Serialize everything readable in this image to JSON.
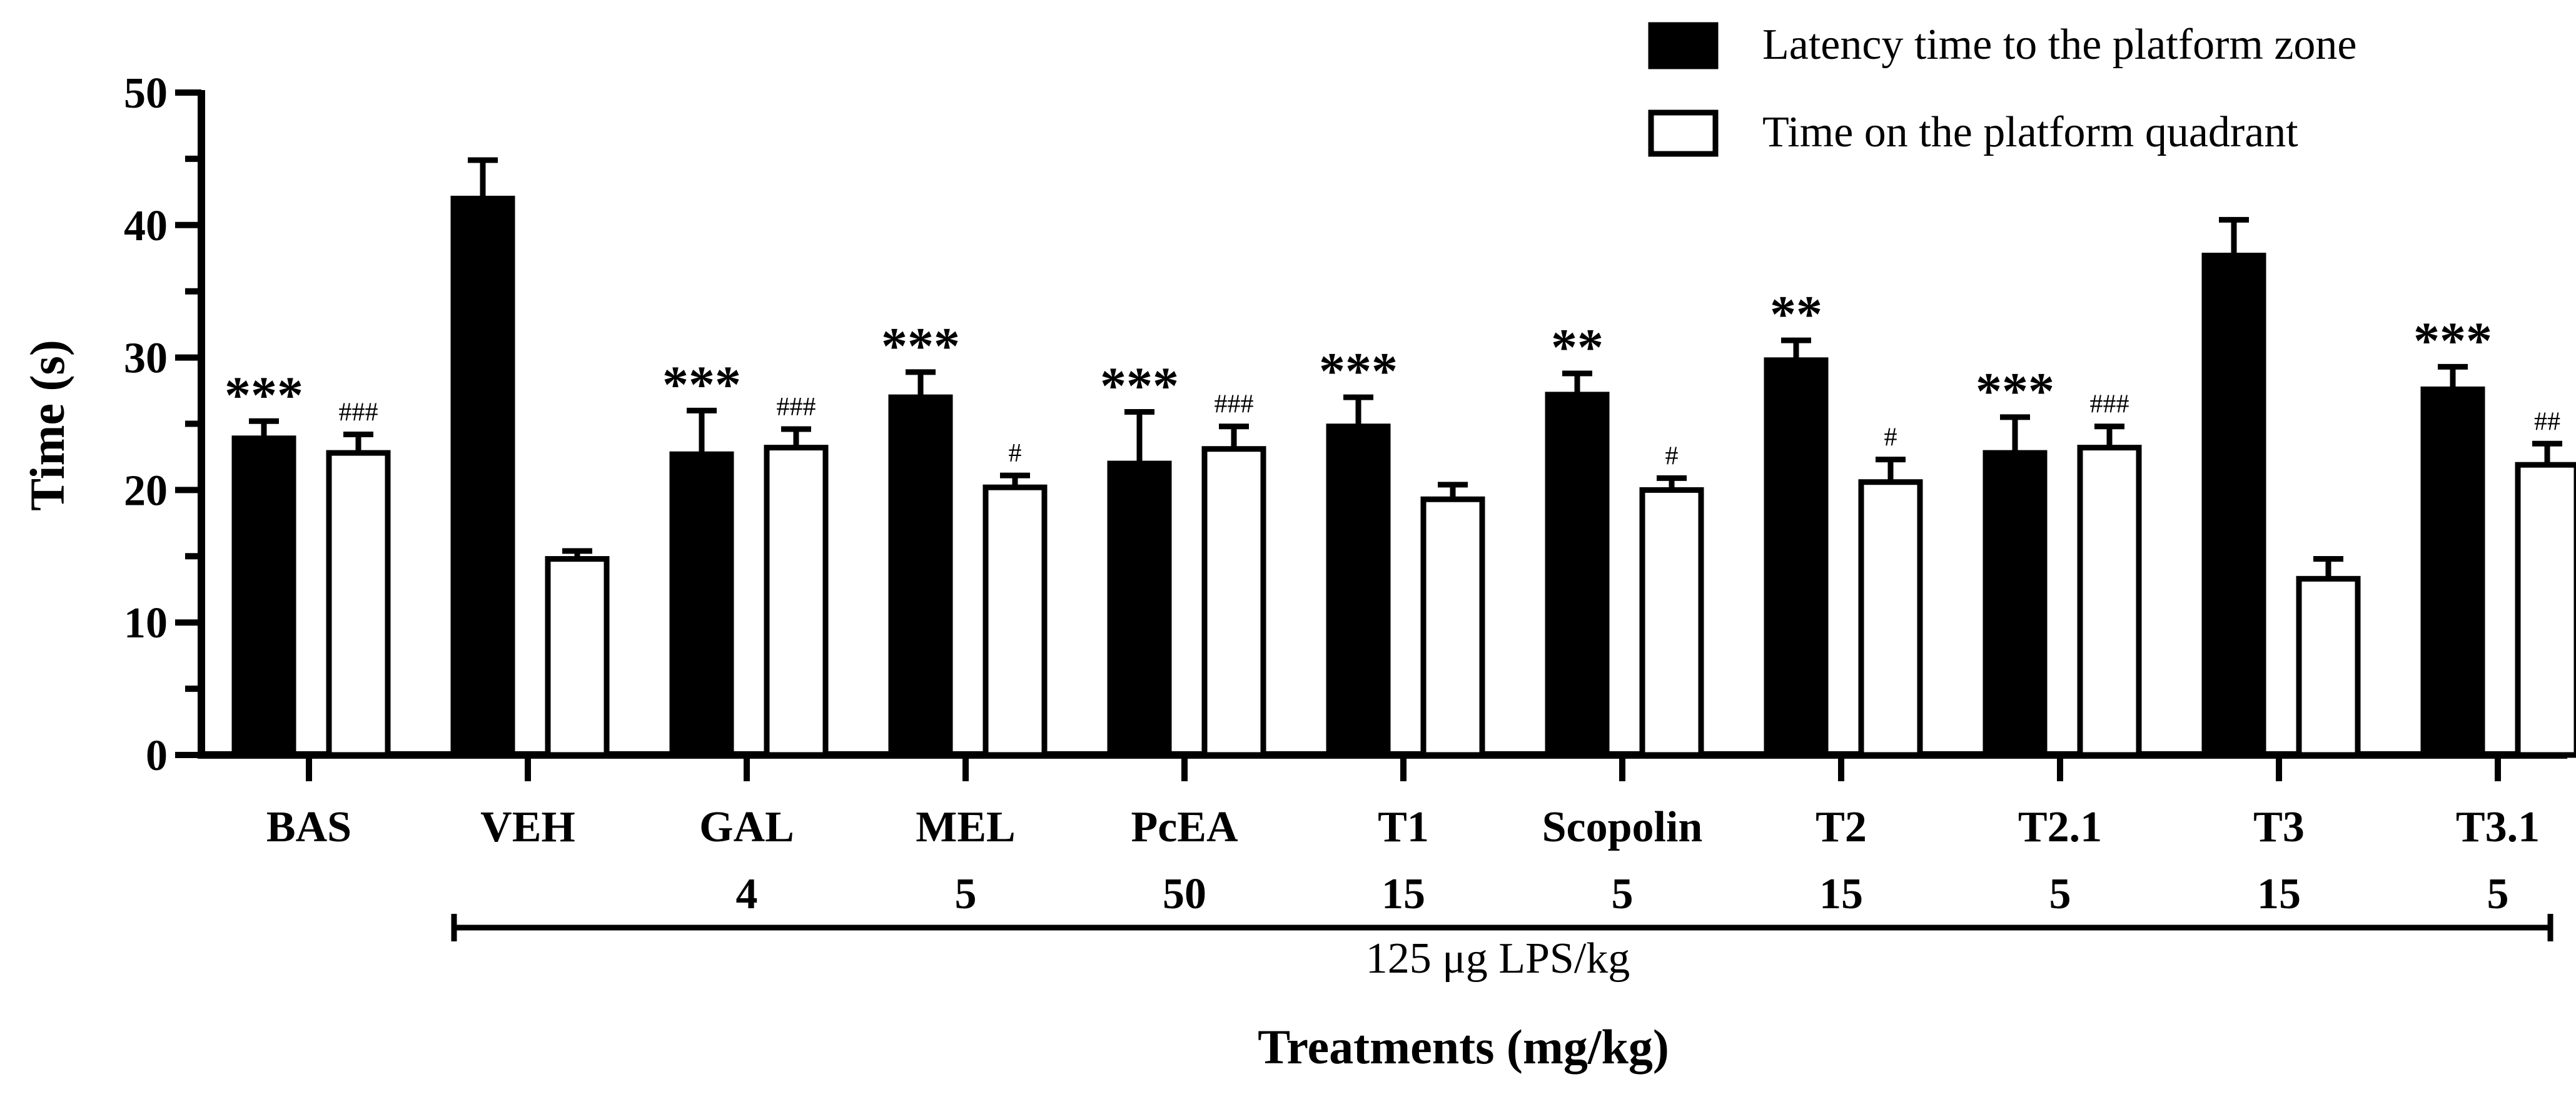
{
  "chart_data": {
    "type": "bar",
    "title": "",
    "xlabel": "Treatments (mg/kg)",
    "ylabel": "Time (s)",
    "ylim": [
      0,
      50
    ],
    "yticks": [
      0,
      10,
      20,
      30,
      40,
      50
    ],
    "grid": false,
    "legend_position": "top-right",
    "categories": [
      "BAS",
      "VEH",
      "GAL",
      "MEL",
      "PcEA",
      "T1",
      "Scopolin",
      "T2",
      "T2.1",
      "T3",
      "T3.1"
    ],
    "doses": [
      "",
      "",
      "4",
      "5",
      "50",
      "15",
      "5",
      "15",
      "5",
      "15",
      "5"
    ],
    "bracket_label": "125 μg LPS/kg",
    "series": [
      {
        "name": "Latency time to the platform zone",
        "color": "#000000",
        "values": [
          23.9,
          42.0,
          22.7,
          27.0,
          22.0,
          24.8,
          27.2,
          29.8,
          22.8,
          37.7,
          27.6
        ],
        "errors": [
          1.3,
          2.9,
          3.3,
          1.9,
          3.9,
          2.2,
          1.6,
          1.5,
          2.7,
          2.7,
          1.7
        ],
        "annotations": [
          "***",
          "",
          "***",
          "***",
          "***",
          "***",
          "**",
          "**",
          "***",
          "",
          "***"
        ]
      },
      {
        "name": "Time on the platform quadrant",
        "color": "#ffffff",
        "values": [
          22.8,
          14.8,
          23.2,
          20.2,
          23.1,
          19.3,
          20.0,
          20.6,
          23.2,
          13.3,
          21.9
        ],
        "errors": [
          1.4,
          0.6,
          1.4,
          0.9,
          1.7,
          1.1,
          0.9,
          1.7,
          1.6,
          1.5,
          1.6
        ],
        "annotations": [
          "###",
          "",
          "###",
          "#",
          "###",
          "",
          "#",
          "#",
          "###",
          "",
          "##"
        ]
      }
    ]
  }
}
